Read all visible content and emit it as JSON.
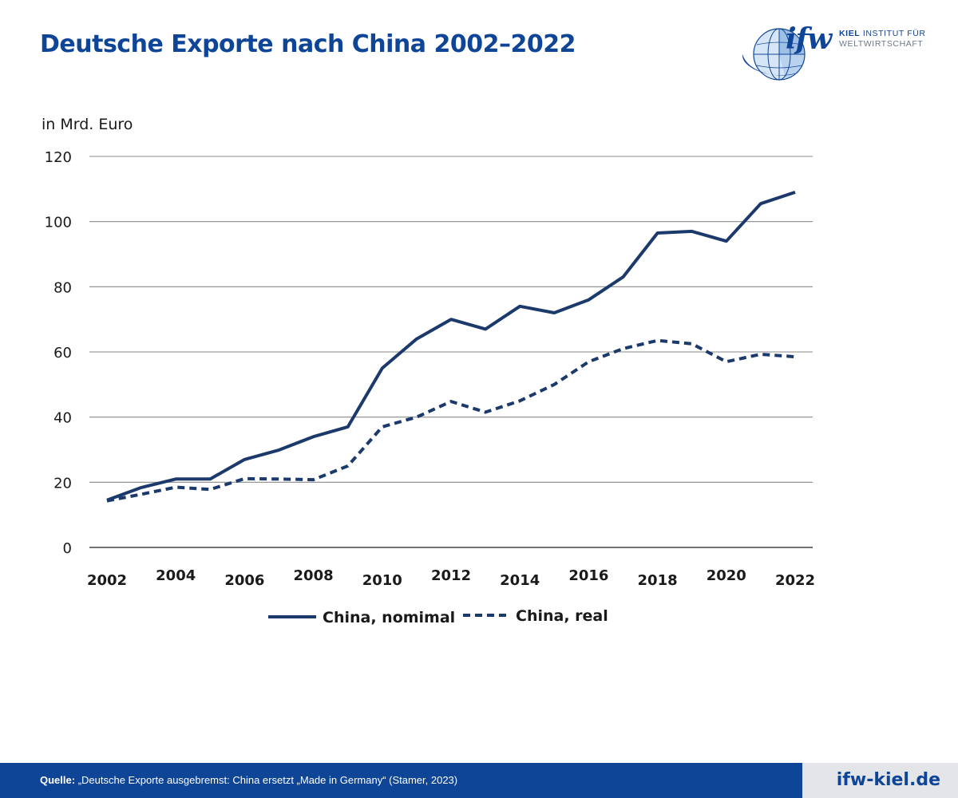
{
  "header": {
    "title": "Deutsche Exporte nach China 2002–2022"
  },
  "logo": {
    "mark": "ifw",
    "line1_bold": "KIEL",
    "line1_rest": " INSTITUT FÜR",
    "line2": "WELTWIRTSCHAFT",
    "icon": "globe-icon"
  },
  "chart_data": {
    "type": "line",
    "ylabel": "in Mrd. Euro",
    "ylim": [
      0,
      120
    ],
    "yticks": [
      0,
      20,
      40,
      60,
      80,
      100,
      120
    ],
    "xlim": [
      2002,
      2022
    ],
    "xticks": [
      2002,
      2004,
      2006,
      2008,
      2010,
      2012,
      2014,
      2016,
      2018,
      2020,
      2022
    ],
    "x": [
      2002,
      2003,
      2004,
      2005,
      2006,
      2007,
      2008,
      2009,
      2010,
      2011,
      2012,
      2013,
      2014,
      2015,
      2016,
      2017,
      2018,
      2019,
      2020,
      2021,
      2022
    ],
    "grid": true,
    "legend_position": "bottom",
    "series": [
      {
        "name": "China, nomimal",
        "style": "solid",
        "color": "#1b3a6b",
        "values": [
          14.5,
          18.4,
          21,
          21,
          27,
          29.9,
          34,
          37,
          55,
          64,
          70,
          67,
          74,
          72,
          76,
          83,
          96.5,
          97,
          94,
          105.5,
          109
        ]
      },
      {
        "name": "China, real",
        "style": "dashed",
        "color": "#1b3a6b",
        "values": [
          14.3,
          16.3,
          18.5,
          17.8,
          21.1,
          21,
          20.8,
          25,
          37,
          40,
          44.8,
          41.5,
          45,
          50,
          57,
          61,
          63.5,
          62.5,
          57,
          59.3,
          58.5
        ]
      }
    ]
  },
  "footer": {
    "source_label": "Quelle:",
    "source_text": " „Deutsche Exporte ausgebremst: China ersetzt „Made in Germany“ (Stamer, 2023)",
    "site": "ifw-kiel.de"
  }
}
